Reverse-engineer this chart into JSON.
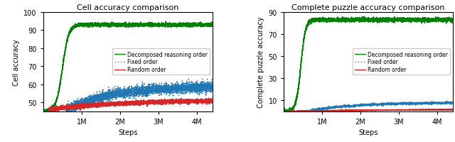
{
  "left_title": "Cell accuracy comparison",
  "right_title": "Complete puzzle accuracy comparison",
  "left_ylabel": "Cell accuracy",
  "right_ylabel": "Complete puzzle accuracy",
  "xlabel": "Steps",
  "left_ylim": [
    45,
    100
  ],
  "right_ylim": [
    0,
    90
  ],
  "left_yticks": [
    50,
    60,
    70,
    80,
    90,
    100
  ],
  "right_yticks": [
    10,
    30,
    50,
    70,
    90
  ],
  "xticks": [
    1000000,
    2000000,
    3000000,
    4000000
  ],
  "xtick_labels": [
    "1M",
    "2M",
    "3M",
    "4M"
  ],
  "xmax": 4400000,
  "xmin": 0,
  "seed": 42,
  "colors": {
    "decomposed": "#008000",
    "fixed": "#1f77b4",
    "random": "#d62728"
  },
  "legend_labels": [
    "Decomposed reasoning order",
    "Fixed order",
    "Random order"
  ]
}
